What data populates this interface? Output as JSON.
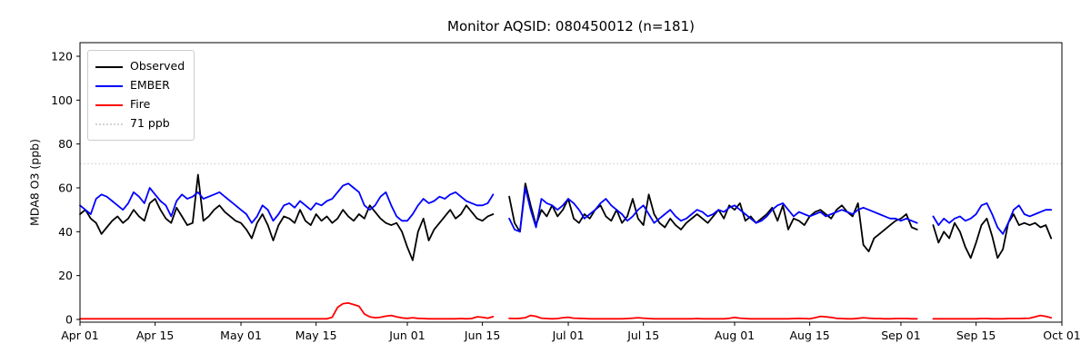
{
  "chart_data": {
    "type": "line",
    "title": "Monitor AQSID: 080450012 (n=181)",
    "ylabel": "MDA8 O3 (ppb)",
    "xlabel": "",
    "grid": false,
    "start_date": "Apr 01",
    "x_unit": "days since Apr 01",
    "ylim": [
      -1.2,
      126
    ],
    "yticks": [
      0,
      20,
      40,
      60,
      80,
      100,
      120
    ],
    "xticks": [
      {
        "label": "Apr 01",
        "day": 0
      },
      {
        "label": "Apr 15",
        "day": 14
      },
      {
        "label": "May 01",
        "day": 30
      },
      {
        "label": "May 15",
        "day": 44
      },
      {
        "label": "Jun 01",
        "day": 61
      },
      {
        "label": "Jun 15",
        "day": 75
      },
      {
        "label": "Jul 01",
        "day": 91
      },
      {
        "label": "Jul 15",
        "day": 105
      },
      {
        "label": "Aug 01",
        "day": 122
      },
      {
        "label": "Aug 15",
        "day": 136
      },
      {
        "label": "Sep 01",
        "day": 153
      },
      {
        "label": "Sep 15",
        "day": 167
      },
      {
        "label": "Oct 01",
        "day": 183
      }
    ],
    "threshold": {
      "label": "71 ppb",
      "value": 71,
      "color": "#d3d3d3",
      "style": "dotted"
    },
    "legend": {
      "position": "upper-left",
      "entries": [
        {
          "label": "Observed",
          "color": "#000000",
          "dash": "solid"
        },
        {
          "label": "EMBER",
          "color": "#0000ff",
          "dash": "solid"
        },
        {
          "label": "Fire",
          "color": "#ff0000",
          "dash": "solid"
        },
        {
          "label": "71 ppb",
          "color": "#d3d3d3",
          "dash": "dotted"
        }
      ]
    },
    "series": [
      {
        "name": "Observed",
        "color": "#000000",
        "values": [
          48,
          50,
          46,
          44,
          39,
          42,
          45,
          47,
          44,
          46,
          50,
          47,
          45,
          53,
          55,
          50,
          46,
          44,
          51,
          47,
          43,
          44,
          66,
          45,
          47,
          50,
          52,
          49,
          47,
          45,
          44,
          41,
          37,
          44,
          48,
          43,
          36,
          43,
          47,
          46,
          44,
          50,
          45,
          43,
          48,
          45,
          47,
          44,
          46,
          50,
          47,
          45,
          48,
          46,
          52,
          49,
          46,
          44,
          43,
          44,
          40,
          33,
          27,
          40,
          46,
          36,
          41,
          44,
          47,
          50,
          46,
          48,
          52,
          49,
          46,
          45,
          47,
          48,
          null,
          null,
          56,
          44,
          40,
          62,
          52,
          43,
          50,
          47,
          52,
          47,
          50,
          55,
          46,
          44,
          48,
          46,
          50,
          52,
          47,
          45,
          50,
          44,
          47,
          55,
          46,
          43,
          57,
          48,
          44,
          42,
          46,
          43,
          41,
          44,
          46,
          48,
          46,
          44,
          47,
          50,
          46,
          52,
          50,
          53,
          45,
          47,
          44,
          46,
          48,
          51,
          45,
          52,
          41,
          46,
          45,
          43,
          47,
          49,
          50,
          48,
          46,
          50,
          52,
          49,
          47,
          53,
          34,
          31,
          37,
          39,
          41,
          43,
          45,
          46,
          48,
          42,
          41,
          null,
          null,
          43,
          35,
          40,
          37,
          44,
          40,
          33,
          28,
          35,
          43,
          46,
          38,
          28,
          32,
          44,
          48,
          43,
          44,
          43,
          44,
          42,
          43,
          37,
          null
        ]
      },
      {
        "name": "EMBER",
        "color": "#0000ff",
        "values": [
          52,
          50,
          48,
          55,
          57,
          56,
          54,
          52,
          50,
          53,
          58,
          56,
          53,
          60,
          57,
          54,
          52,
          47,
          54,
          57,
          55,
          56,
          58,
          55,
          56,
          57,
          58,
          56,
          54,
          52,
          50,
          48,
          44,
          47,
          52,
          50,
          45,
          48,
          52,
          53,
          51,
          54,
          52,
          50,
          53,
          52,
          54,
          55,
          58,
          61,
          62,
          60,
          58,
          52,
          50,
          52,
          56,
          58,
          52,
          47,
          45,
          45,
          48,
          52,
          55,
          53,
          54,
          56,
          55,
          57,
          58,
          56,
          54,
          53,
          52,
          52,
          53,
          57,
          null,
          null,
          46,
          41,
          40,
          60,
          50,
          42,
          55,
          53,
          52,
          50,
          52,
          55,
          53,
          50,
          46,
          48,
          50,
          53,
          55,
          52,
          50,
          48,
          45,
          47,
          50,
          52,
          48,
          44,
          46,
          48,
          50,
          47,
          45,
          46,
          48,
          50,
          49,
          47,
          48,
          50,
          49,
          51,
          52,
          50,
          48,
          46,
          44,
          45,
          47,
          50,
          52,
          53,
          50,
          47,
          49,
          48,
          47,
          48,
          49,
          47,
          48,
          49,
          50,
          49,
          48,
          50,
          51,
          50,
          49,
          48,
          47,
          46,
          46,
          45,
          46,
          45,
          44,
          null,
          null,
          47,
          43,
          46,
          44,
          46,
          47,
          45,
          46,
          48,
          52,
          53,
          48,
          42,
          39,
          44,
          50,
          52,
          48,
          47,
          48,
          49,
          50,
          50,
          null
        ]
      },
      {
        "name": "Fire",
        "color": "#ff0000",
        "values": [
          0.3,
          0.3,
          0.3,
          0.3,
          0.3,
          0.3,
          0.3,
          0.3,
          0.3,
          0.3,
          0.3,
          0.3,
          0.3,
          0.3,
          0.3,
          0.3,
          0.3,
          0.3,
          0.3,
          0.3,
          0.3,
          0.3,
          0.3,
          0.3,
          0.3,
          0.3,
          0.3,
          0.3,
          0.3,
          0.3,
          0.3,
          0.3,
          0.3,
          0.3,
          0.3,
          0.3,
          0.3,
          0.3,
          0.3,
          0.3,
          0.3,
          0.3,
          0.3,
          0.3,
          0.3,
          0.3,
          0.3,
          1.0,
          5.5,
          7.2,
          7.5,
          6.8,
          6.0,
          2.5,
          1.2,
          0.8,
          1.0,
          1.5,
          1.8,
          1.2,
          0.7,
          0.5,
          0.8,
          0.5,
          0.4,
          0.3,
          0.3,
          0.3,
          0.3,
          0.3,
          0.3,
          0.4,
          0.3,
          0.4,
          1.2,
          1.0,
          0.6,
          1.3,
          null,
          null,
          0.5,
          0.4,
          0.5,
          0.8,
          1.8,
          1.4,
          0.6,
          0.4,
          0.3,
          0.4,
          0.8,
          1.0,
          0.6,
          0.5,
          0.4,
          0.3,
          0.3,
          0.3,
          0.3,
          0.3,
          0.3,
          0.3,
          0.4,
          0.6,
          0.8,
          0.6,
          0.4,
          0.3,
          0.3,
          0.3,
          0.3,
          0.3,
          0.3,
          0.3,
          0.3,
          0.4,
          0.3,
          0.3,
          0.3,
          0.3,
          0.3,
          0.5,
          0.9,
          0.6,
          0.4,
          0.3,
          0.3,
          0.3,
          0.3,
          0.3,
          0.3,
          0.3,
          0.3,
          0.4,
          0.5,
          0.4,
          0.3,
          0.8,
          1.4,
          1.2,
          0.9,
          0.5,
          0.4,
          0.3,
          0.3,
          0.5,
          0.8,
          0.6,
          0.4,
          0.4,
          0.3,
          0.3,
          0.4,
          0.4,
          0.4,
          0.3,
          0.3,
          null,
          null,
          0.3,
          0.3,
          0.3,
          0.3,
          0.3,
          0.3,
          0.3,
          0.3,
          0.3,
          0.4,
          0.4,
          0.3,
          0.3,
          0.3,
          0.4,
          0.4,
          0.4,
          0.5,
          0.6,
          1.2,
          1.8,
          1.4,
          0.8,
          null
        ]
      }
    ]
  }
}
